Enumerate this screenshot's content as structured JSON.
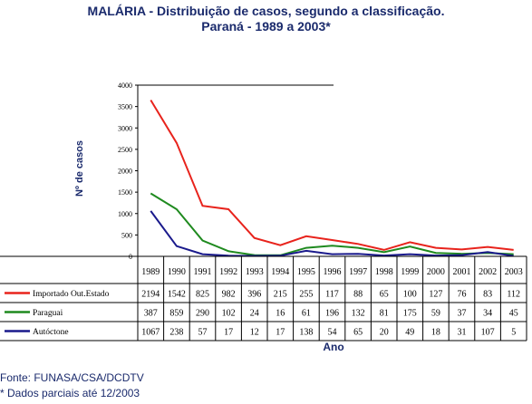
{
  "title": "MALÁRIA - Distribuição de casos, segundo a classificação.",
  "subtitle": "Paraná - 1989 a 2003*",
  "footnote_source": "Fonte: FUNASA/CSA/DCDTV",
  "footnote_partial": "* Dados parciais até 12/2003",
  "chart_data": {
    "type": "line",
    "ylabel": "Nº de casos",
    "xlabel": "Ano",
    "ylim": [
      0,
      4000
    ],
    "yticks": [
      0,
      500,
      1000,
      1500,
      2000,
      2500,
      3000,
      3500,
      4000
    ],
    "x": [
      "1989",
      "1990",
      "1991",
      "1992",
      "1993",
      "1994",
      "1995",
      "1996",
      "1997",
      "1998",
      "1999",
      "2000",
      "2001",
      "2002",
      "2003"
    ],
    "series": [
      {
        "name": "Importado Out.Estado",
        "color": "#e8231c",
        "values": [
          2194,
          1542,
          825,
          982,
          396,
          215,
          255,
          117,
          88,
          65,
          100,
          127,
          76,
          83,
          112
        ]
      },
      {
        "name": "Paraguai",
        "color": "#1f8a1f",
        "values": [
          387,
          859,
          290,
          102,
          24,
          16,
          61,
          196,
          132,
          81,
          175,
          59,
          37,
          34,
          45
        ]
      },
      {
        "name": "Autóctone",
        "color": "#1a1a8c",
        "values": [
          1067,
          238,
          57,
          17,
          12,
          17,
          138,
          54,
          65,
          20,
          49,
          18,
          31,
          107,
          5
        ]
      }
    ],
    "plotted_values": [
      [
        3650,
        2650,
        1180,
        1100,
        430,
        260,
        470,
        380,
        290,
        150,
        330,
        200,
        160,
        220,
        150
      ],
      [
        1470,
        1100,
        370,
        120,
        30,
        25,
        200,
        250,
        200,
        100,
        230,
        80,
        60,
        80,
        50
      ],
      [
        1060,
        240,
        50,
        15,
        10,
        15,
        130,
        50,
        60,
        20,
        50,
        20,
        30,
        100,
        10
      ]
    ]
  }
}
